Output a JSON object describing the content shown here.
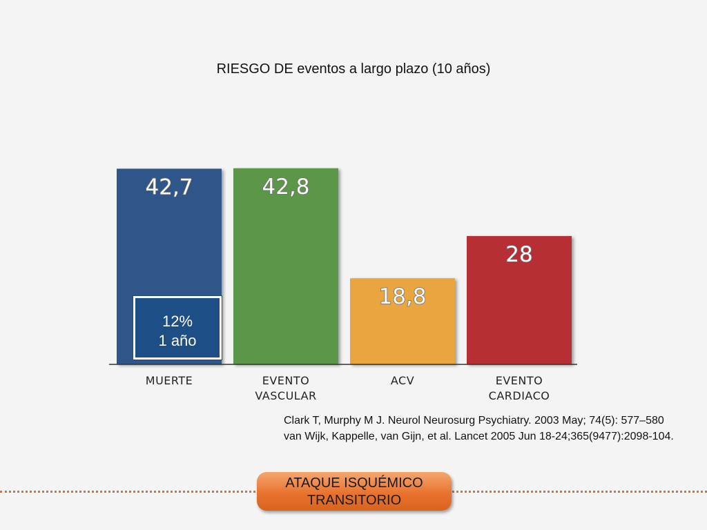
{
  "chart_data": {
    "type": "bar",
    "title": "RIESGO DE eventos a largo plazo (10 años)",
    "categories": [
      [
        "MUERTE"
      ],
      [
        "EVENTO",
        "VASCULAR"
      ],
      [
        "ACV"
      ],
      [
        "EVENTO",
        "CARDIACO"
      ]
    ],
    "values": [
      42.7,
      42.8,
      18.8,
      28
    ],
    "value_labels": [
      "42,7",
      "42,8",
      "18,8",
      "28"
    ],
    "colors": [
      "#2e5789",
      "#5c9749",
      "#e9a53f",
      "#b72d34"
    ],
    "ylim": [
      0,
      50
    ],
    "grid": false,
    "legend": "none",
    "inset": {
      "line1": "12%",
      "line2": "1 año"
    }
  },
  "references": [
    "Clark T, Murphy M J. Neurol Neurosurg Psychiatry. 2003 May; 74(5): 577–580",
    "van Wijk, Kappelle, van Gijn, et al. Lancet 2005 Jun 18-24;365(9477):2098-104."
  ],
  "badge": {
    "line1": "ATAQUE ISQUÉMICO",
    "line2": "TRANSITORIO"
  }
}
